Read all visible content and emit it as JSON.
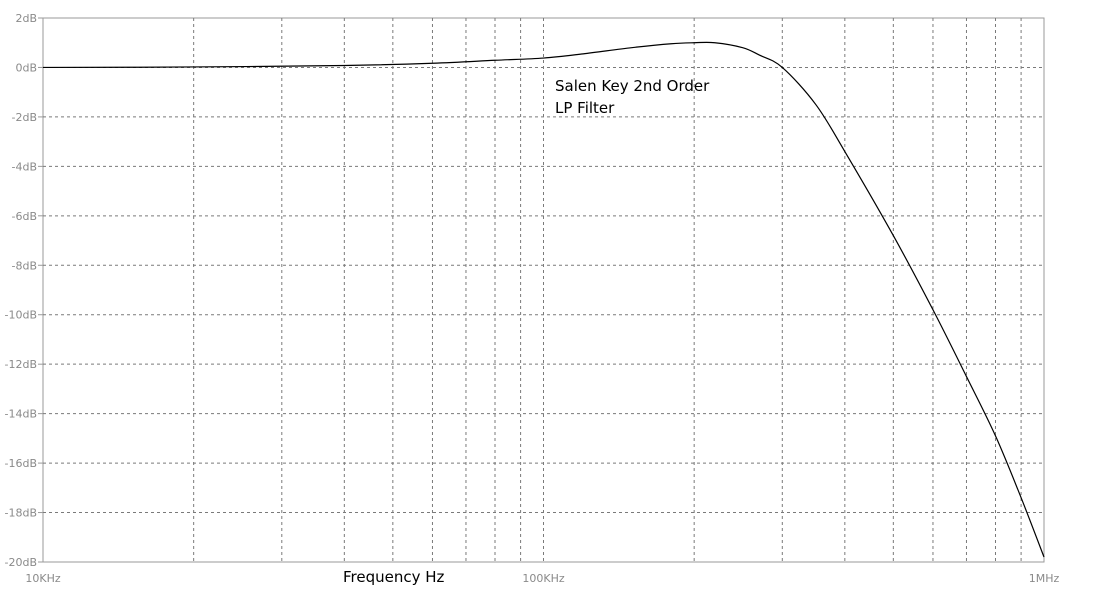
{
  "chart_data": {
    "type": "line",
    "title": "",
    "xlabel": "Frequency Hz",
    "ylabel": "",
    "x_scale": "log",
    "xlim": [
      10000,
      1000000
    ],
    "ylim": [
      -20,
      2
    ],
    "grid": true,
    "x_ticks": [
      {
        "value": 10000,
        "label": "10KHz"
      },
      {
        "value": 100000,
        "label": "100KHz"
      },
      {
        "value": 1000000,
        "label": "1MHz"
      }
    ],
    "y_ticks": [
      {
        "value": 2,
        "label": "2dB"
      },
      {
        "value": 0,
        "label": "0dB"
      },
      {
        "value": -2,
        "label": "-2dB"
      },
      {
        "value": -4,
        "label": "-4dB"
      },
      {
        "value": -6,
        "label": "-6dB"
      },
      {
        "value": -8,
        "label": "-8dB"
      },
      {
        "value": -10,
        "label": "-10dB"
      },
      {
        "value": -12,
        "label": "-12dB"
      },
      {
        "value": -14,
        "label": "-14dB"
      },
      {
        "value": -16,
        "label": "-16dB"
      },
      {
        "value": -18,
        "label": "-18dB"
      },
      {
        "value": -20,
        "label": "-20dB"
      }
    ],
    "annotations": [
      "Salen Key 2nd Order",
      "LP Filter"
    ],
    "series": [
      {
        "color": "#000000",
        "x": [
          10000,
          20000,
          40000,
          60000,
          80000,
          100000,
          120000,
          150000,
          180000,
          200000,
          220000,
          250000,
          270000,
          300000,
          350000,
          400000,
          500000,
          600000,
          700000,
          800000,
          900000,
          1000000
        ],
        "y": [
          0.0,
          0.02,
          0.08,
          0.17,
          0.29,
          0.38,
          0.55,
          0.8,
          0.96,
          1.0,
          1.0,
          0.8,
          0.5,
          0.0,
          -1.5,
          -3.4,
          -6.8,
          -9.8,
          -12.5,
          -14.9,
          -17.4,
          -19.8
        ]
      }
    ]
  }
}
